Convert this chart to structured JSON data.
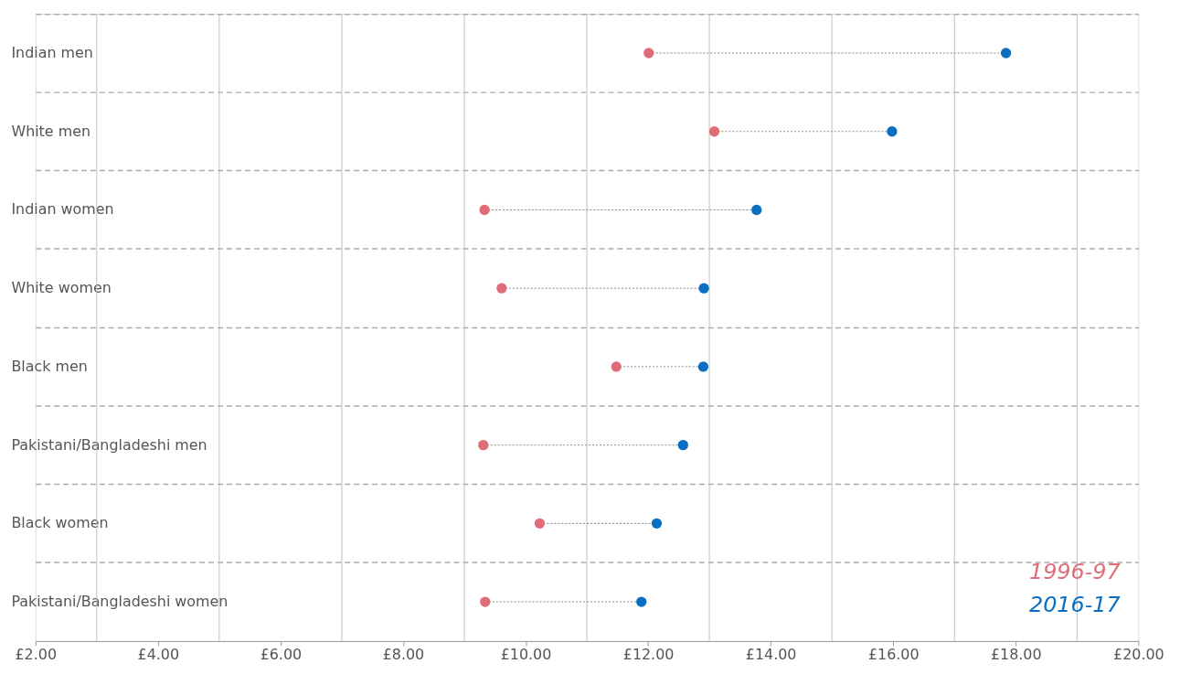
{
  "chart_data": {
    "type": "scatter",
    "categories": [
      "Indian men",
      "White men",
      "Indian women",
      "White women",
      "Black men",
      "Pakistani/Bangladeshi men",
      "Black women",
      "Pakistani/Bangladeshi women"
    ],
    "series": [
      {
        "name": "1996-97",
        "color": "#e06c78",
        "values": [
          12.01,
          13.08,
          9.33,
          9.61,
          11.48,
          9.31,
          10.23,
          9.34
        ]
      },
      {
        "name": "2016-17",
        "color": "#0a6fc2",
        "values": [
          17.84,
          15.98,
          13.77,
          12.91,
          12.9,
          12.57,
          12.14,
          11.89
        ]
      }
    ],
    "orientation": "horizontal",
    "xlim": [
      2,
      20
    ],
    "xticks": [
      {
        "value": 2,
        "label": "£2.00"
      },
      {
        "value": 3,
        "label": null
      },
      {
        "value": 4,
        "label": "£4.00"
      },
      {
        "value": 5,
        "label": null
      },
      {
        "value": 6,
        "label": "£6.00"
      },
      {
        "value": 7,
        "label": null
      },
      {
        "value": 8,
        "label": "£8.00"
      },
      {
        "value": 9,
        "label": null
      },
      {
        "value": 10,
        "label": "£10.00"
      },
      {
        "value": 11,
        "label": null
      },
      {
        "value": 12,
        "label": "£12.00"
      },
      {
        "value": 13,
        "label": null
      },
      {
        "value": 14,
        "label": "£14.00"
      },
      {
        "value": 15,
        "label": null
      },
      {
        "value": 16,
        "label": "£16.00"
      },
      {
        "value": 17,
        "label": null
      },
      {
        "value": 18,
        "label": "£18.00"
      },
      {
        "value": 19,
        "label": null
      },
      {
        "value": 20,
        "label": "£20.00"
      }
    ],
    "grid": true,
    "legend": "bottom right",
    "marker": "circle",
    "line_style": "dotted"
  }
}
